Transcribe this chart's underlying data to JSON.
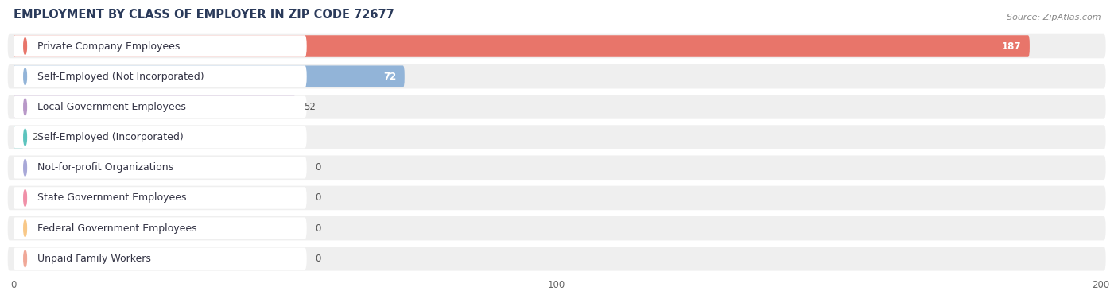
{
  "title": "EMPLOYMENT BY CLASS OF EMPLOYER IN ZIP CODE 72677",
  "source": "Source: ZipAtlas.com",
  "categories": [
    "Private Company Employees",
    "Self-Employed (Not Incorporated)",
    "Local Government Employees",
    "Self-Employed (Incorporated)",
    "Not-for-profit Organizations",
    "State Government Employees",
    "Federal Government Employees",
    "Unpaid Family Workers"
  ],
  "values": [
    187,
    72,
    52,
    2,
    0,
    0,
    0,
    0
  ],
  "bar_colors": [
    "#e8756a",
    "#92b4d8",
    "#b898c8",
    "#5cc4be",
    "#a8a8d8",
    "#f090a8",
    "#f8c888",
    "#f0a898"
  ],
  "dot_colors": [
    "#e8756a",
    "#92b4d8",
    "#b898c8",
    "#5cc4be",
    "#a8a8d8",
    "#f090a8",
    "#f8c888",
    "#f0a898"
  ],
  "row_bg_color": "#efefef",
  "label_box_color": "#ffffff",
  "background_color": "#ffffff",
  "xlim": [
    0,
    200
  ],
  "xticks": [
    0,
    100,
    200
  ],
  "title_fontsize": 10.5,
  "label_fontsize": 9,
  "value_fontsize": 8.5,
  "title_color": "#2a3a5a",
  "source_color": "#888888"
}
